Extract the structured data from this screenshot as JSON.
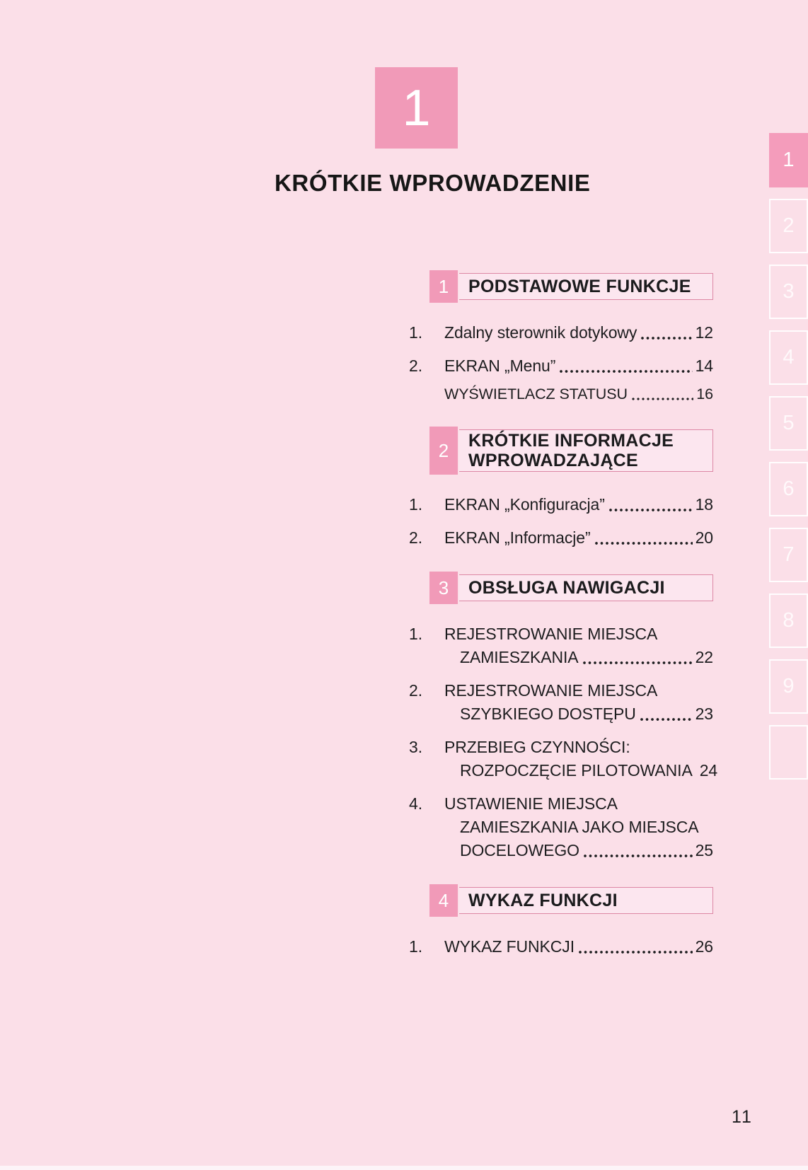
{
  "page": {
    "chapter_number": "1",
    "title": "KRÓTKIE WPROWADZENIE",
    "page_number": "11"
  },
  "colors": {
    "background": "#fbdfe8",
    "accent_pink": "#f19ab8",
    "active_tab_pink": "#f49cbb",
    "header_bar_fill": "#fce6ef",
    "header_bar_border": "#dd87a4",
    "text": "#1d1d1f"
  },
  "sections": [
    {
      "number": "1",
      "title_lines": [
        "PODSTAWOWE FUNKCJE"
      ],
      "entries": [
        {
          "num": "1.",
          "lines": [],
          "last": "Zdalny sterownik dotykowy",
          "page": "12",
          "sub": false
        },
        {
          "num": "2.",
          "lines": [],
          "last": "EKRAN „Menu”",
          "page": "14",
          "sub": false
        },
        {
          "num": "",
          "lines": [],
          "last": "WYŚWIETLACZ STATUSU",
          "page": "16",
          "sub": true
        }
      ]
    },
    {
      "number": "2",
      "title_lines": [
        "KRÓTKIE INFORMACJE",
        "WPROWADZAJĄCE"
      ],
      "entries": [
        {
          "num": "1.",
          "lines": [],
          "last": "EKRAN „Konfiguracja”",
          "page": "18",
          "sub": false
        },
        {
          "num": "2.",
          "lines": [],
          "last": "EKRAN „Informacje”",
          "page": "20",
          "sub": false
        }
      ]
    },
    {
      "number": "3",
      "title_lines": [
        "OBSŁUGA NAWIGACJI"
      ],
      "entries": [
        {
          "num": "1.",
          "lines": [
            "REJESTROWANIE MIEJSCA"
          ],
          "last": "ZAMIESZKANIA",
          "page": "22",
          "sub": false
        },
        {
          "num": "2.",
          "lines": [
            "REJESTROWANIE MIEJSCA"
          ],
          "last": "SZYBKIEGO DOSTĘPU",
          "page": "23",
          "sub": false
        },
        {
          "num": "3.",
          "lines": [
            "PRZEBIEG CZYNNOŚCI:"
          ],
          "last": "ROZPOCZĘCIE PILOTOWANIA",
          "page": "24",
          "sub": false
        },
        {
          "num": "4.",
          "lines": [
            "USTAWIENIE MIEJSCA",
            "ZAMIESZKANIA JAKO MIEJSCA"
          ],
          "last": "DOCELOWEGO",
          "page": "25",
          "sub": false
        }
      ]
    },
    {
      "number": "4",
      "title_lines": [
        "WYKAZ FUNKCJI"
      ],
      "entries": [
        {
          "num": "1.",
          "lines": [],
          "last": "WYKAZ FUNKCJI",
          "page": "26",
          "sub": false
        }
      ]
    }
  ],
  "side_tabs": [
    {
      "label": "1",
      "active": true
    },
    {
      "label": "2",
      "active": false
    },
    {
      "label": "3",
      "active": false
    },
    {
      "label": "4",
      "active": false
    },
    {
      "label": "5",
      "active": false
    },
    {
      "label": "6",
      "active": false
    },
    {
      "label": "7",
      "active": false
    },
    {
      "label": "8",
      "active": false
    },
    {
      "label": "9",
      "active": false
    },
    {
      "label": "",
      "active": false
    }
  ]
}
